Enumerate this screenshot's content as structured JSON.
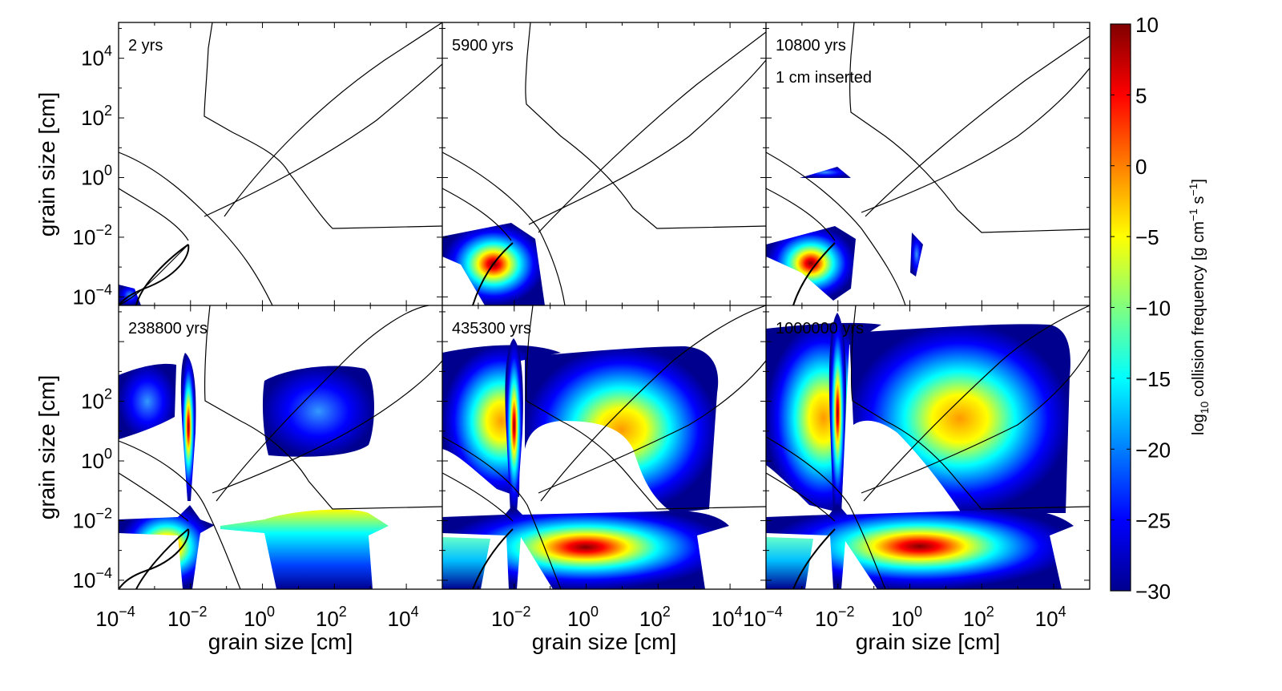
{
  "figure": {
    "xlabel": "grain size [cm]",
    "ylabel": "grain size [cm]",
    "colorbar": {
      "label_parts": [
        "log",
        "10",
        " collision frequency [g cm",
        "−1",
        " s",
        "−1",
        "]"
      ],
      "range": [
        -30,
        10
      ],
      "ticks": [
        "10",
        "5",
        "0",
        "−5",
        "−10",
        "−15",
        "−20",
        "−25",
        "−30"
      ],
      "tick_values": [
        10,
        5,
        0,
        -5,
        -10,
        -15,
        -20,
        -25,
        -30
      ],
      "colormap": [
        "#00008f",
        "#0000ff",
        "#00ffff",
        "#ffff00",
        "#ff0000",
        "#800000"
      ]
    },
    "x_tick_labels": [
      {
        "base": "10",
        "exp": "−4",
        "value": -4
      },
      {
        "base": "10",
        "exp": "−2",
        "value": -2
      },
      {
        "base": "10",
        "exp": "0",
        "value": 0
      },
      {
        "base": "10",
        "exp": "2",
        "value": 2
      },
      {
        "base": "10",
        "exp": "4",
        "value": 4
      }
    ],
    "y_tick_labels": [
      {
        "base": "10",
        "exp": "4",
        "value": 4
      },
      {
        "base": "10",
        "exp": "2",
        "value": 2
      },
      {
        "base": "10",
        "exp": "0",
        "value": 0
      },
      {
        "base": "10",
        "exp": "−2",
        "value": -2
      },
      {
        "base": "10",
        "exp": "−4",
        "value": -4
      }
    ]
  },
  "chart_data": [
    {
      "type": "heatmap",
      "panel": 1,
      "label": "2 yrs",
      "xscale": "log",
      "yscale": "log",
      "xlim": [
        -4,
        5
      ],
      "ylim": [
        -4.3,
        5.2
      ],
      "peak_log10_frequency": -25
    },
    {
      "type": "heatmap",
      "panel": 2,
      "label": "5900 yrs",
      "xscale": "log",
      "yscale": "log",
      "xlim": [
        -4,
        5
      ],
      "ylim": [
        -4.3,
        5.2
      ],
      "peak_log10_frequency": 3
    },
    {
      "type": "heatmap",
      "panel": 3,
      "label": "10800 yrs",
      "annotation": "1 cm inserted",
      "xscale": "log",
      "yscale": "log",
      "xlim": [
        -4,
        5
      ],
      "ylim": [
        -4.3,
        5.2
      ],
      "peak_log10_frequency": 2
    },
    {
      "type": "heatmap",
      "panel": 4,
      "label": "238800 yrs",
      "xscale": "log",
      "yscale": "log",
      "xlim": [
        -4,
        5
      ],
      "ylim": [
        -4.3,
        5.2
      ],
      "peak_log10_frequency": 3
    },
    {
      "type": "heatmap",
      "panel": 5,
      "label": "435300 yrs",
      "xscale": "log",
      "yscale": "log",
      "xlim": [
        -4,
        5
      ],
      "ylim": [
        -4.3,
        5.2
      ],
      "peak_log10_frequency": 6
    },
    {
      "type": "heatmap",
      "panel": 6,
      "label": "1000000 yrs",
      "xscale": "log",
      "yscale": "log",
      "xlim": [
        -4,
        5
      ],
      "ylim": [
        -4.3,
        5.2
      ],
      "peak_log10_frequency": 6
    }
  ]
}
